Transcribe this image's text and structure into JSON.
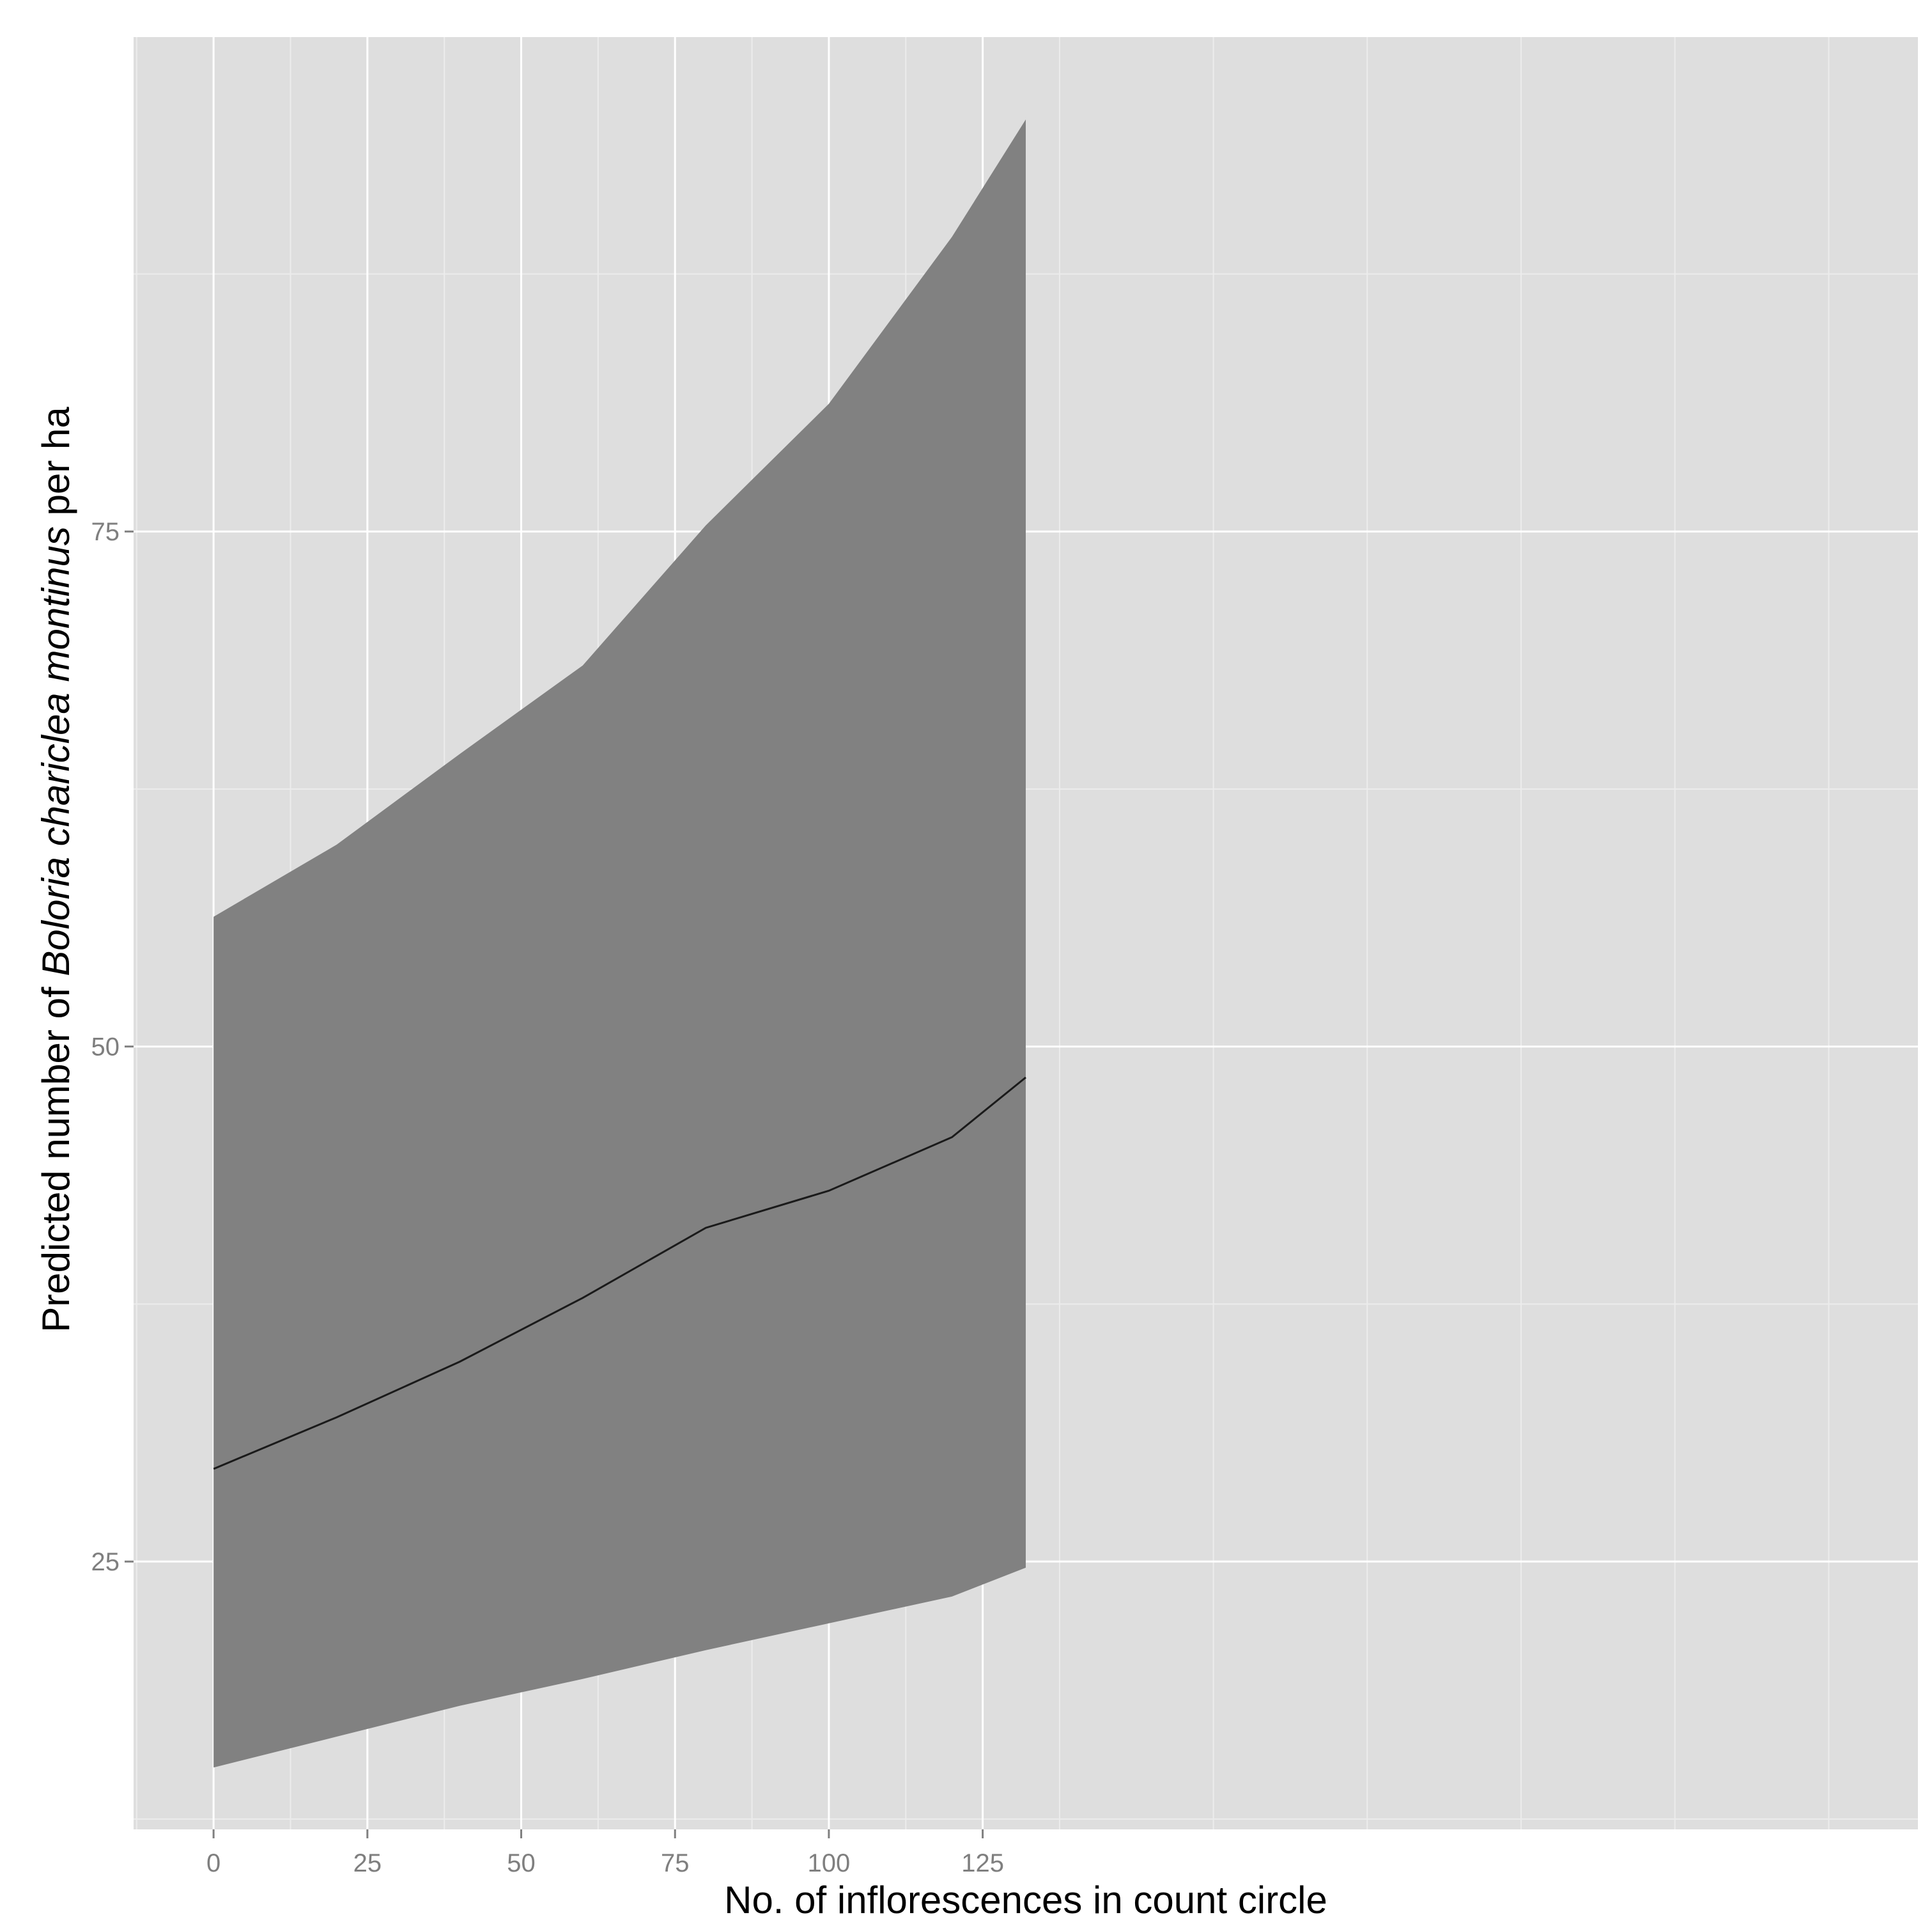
{
  "chart_data": {
    "type": "line",
    "title": "",
    "xlabel": "No. of inflorescences in count circle",
    "ylabel": {
      "prefix": "Predicted number of ",
      "italic": "Boloria chariclea montinus",
      "suffix": " per ha"
    },
    "xlim": [
      -13,
      277
    ],
    "ylim": [
      12,
      99
    ],
    "x_ticks": [
      0,
      25,
      50,
      75,
      100,
      125
    ],
    "x_tick_labels": [
      "0",
      "25",
      "50",
      "75",
      "100",
      "125"
    ],
    "y_ticks": [
      25,
      50,
      75
    ],
    "y_tick_labels": [
      "25",
      "50",
      "75"
    ],
    "grid": true,
    "legend": "none",
    "colors": {
      "panel": "#dedede",
      "grid_major": "#ffffff",
      "grid_minor": "#ececec",
      "ribbon": "#818181",
      "line": "#1a1a1a"
    },
    "series": [
      {
        "role": "fit",
        "x": [
          0,
          20,
          40,
          60,
          80,
          100,
          120,
          132
        ],
        "y": [
          29.5,
          32.0,
          34.7,
          37.8,
          41.2,
          43.0,
          45.6,
          48.5
        ]
      }
    ],
    "ribbon": {
      "x": [
        0,
        20,
        40,
        60,
        80,
        100,
        120,
        132
      ],
      "lower": [
        15.0,
        16.5,
        18.0,
        19.3,
        20.7,
        22.0,
        23.3,
        24.7
      ],
      "upper": [
        56.3,
        59.8,
        64.2,
        68.5,
        75.3,
        81.2,
        89.3,
        95.0
      ]
    }
  }
}
